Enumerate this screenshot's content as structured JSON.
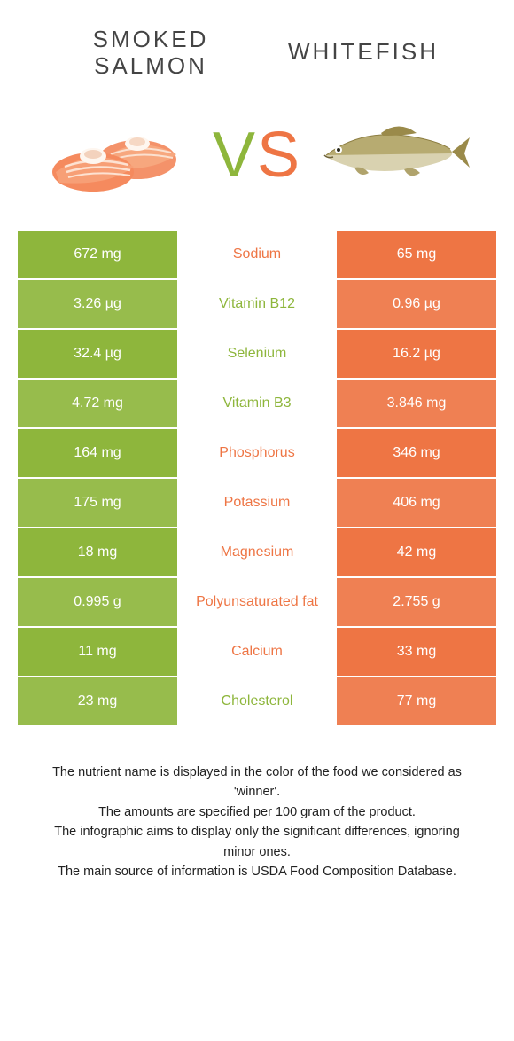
{
  "colors": {
    "left": "#8eb63c",
    "right": "#ee7544",
    "row_alt_tint": 0.92,
    "mid_bg": "#ffffff"
  },
  "header": {
    "left_title": "Smoked salmon",
    "right_title": "Whitefish",
    "vs_v": "V",
    "vs_s": "S"
  },
  "rows": [
    {
      "nutrient": "Sodium",
      "left": "672 mg",
      "right": "65 mg",
      "winner": "right"
    },
    {
      "nutrient": "Vitamin B12",
      "left": "3.26 µg",
      "right": "0.96 µg",
      "winner": "left"
    },
    {
      "nutrient": "Selenium",
      "left": "32.4 µg",
      "right": "16.2 µg",
      "winner": "left"
    },
    {
      "nutrient": "Vitamin B3",
      "left": "4.72 mg",
      "right": "3.846 mg",
      "winner": "left"
    },
    {
      "nutrient": "Phosphorus",
      "left": "164 mg",
      "right": "346 mg",
      "winner": "right"
    },
    {
      "nutrient": "Potassium",
      "left": "175 mg",
      "right": "406 mg",
      "winner": "right"
    },
    {
      "nutrient": "Magnesium",
      "left": "18 mg",
      "right": "42 mg",
      "winner": "right"
    },
    {
      "nutrient": "Polyunsaturated fat",
      "left": "0.995 g",
      "right": "2.755 g",
      "winner": "right"
    },
    {
      "nutrient": "Calcium",
      "left": "11 mg",
      "right": "33 mg",
      "winner": "right"
    },
    {
      "nutrient": "Cholesterol",
      "left": "23 mg",
      "right": "77 mg",
      "winner": "left"
    }
  ],
  "footnotes": [
    "The nutrient name is displayed in the color of the food we considered as 'winner'.",
    "The amounts are specified per 100 gram of the product.",
    "The infographic aims to display only the significant differences, ignoring minor ones.",
    "The main source of information is USDA Food Composition Database."
  ]
}
